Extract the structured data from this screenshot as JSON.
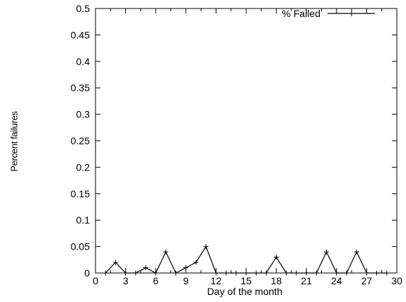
{
  "chart_data": {
    "type": "line",
    "title": "",
    "xlabel": "Day of the month",
    "ylabel": "Percent failures",
    "xlim": [
      0,
      30
    ],
    "ylim": [
      0,
      0.5
    ],
    "xticks": [
      "0",
      "3",
      "6",
      "9",
      "12",
      "15",
      "18",
      "21",
      "24",
      "27",
      "30"
    ],
    "yticks": [
      "0",
      "0.05",
      "0.1",
      "0.15",
      "0.2",
      "0.25",
      "0.3",
      "0.35",
      "0.4",
      "0.45",
      "0.5"
    ],
    "grid": false,
    "legend_position": "top-right",
    "series": [
      {
        "name": "% Failed",
        "color": "#000000",
        "marker": "plus",
        "x": [
          1,
          2,
          3,
          4,
          5,
          6,
          7,
          8,
          9,
          10,
          11,
          12,
          13,
          14,
          15,
          16,
          17,
          18,
          19,
          20,
          21,
          22,
          23,
          24,
          25,
          26,
          27,
          28,
          29
        ],
        "y": [
          0,
          0.02,
          0,
          0,
          0.01,
          0,
          0.04,
          0,
          0.01,
          0.02,
          0.05,
          0,
          0,
          0,
          0,
          0,
          0,
          0.03,
          0,
          0,
          0,
          0,
          0.04,
          0,
          0,
          0.04,
          0,
          0,
          0
        ]
      }
    ]
  }
}
